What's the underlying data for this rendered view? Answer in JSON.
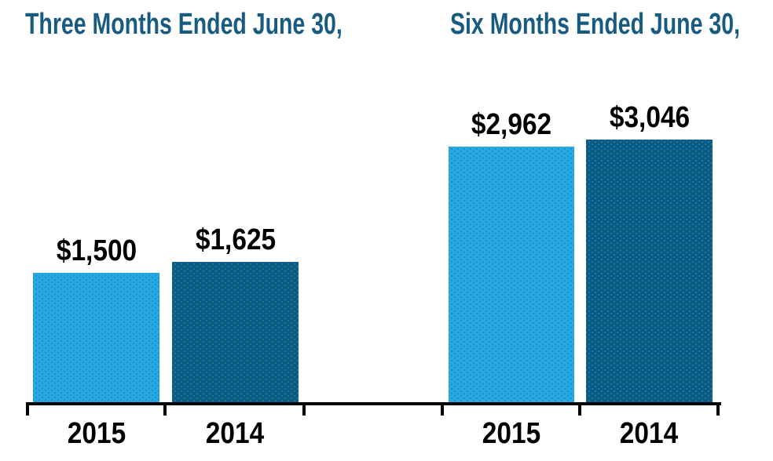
{
  "chart_data": {
    "type": "bar",
    "background": "#ffffff",
    "title_color": "#175c80",
    "value_label_color": "#000000",
    "category_label_color": "#000000",
    "axis_color": "#000000",
    "grid": false,
    "legend": "none",
    "ylim": [
      0,
      3300
    ],
    "groups": [
      {
        "title": "Three Months Ended June 30,",
        "categories": [
          "2015",
          "2014"
        ],
        "values": [
          1500,
          1625
        ],
        "value_labels": [
          "$1,500",
          "$1,625"
        ]
      },
      {
        "title": "Six Months Ended June 30,",
        "categories": [
          "2015",
          "2014"
        ],
        "values": [
          2962,
          3046
        ],
        "value_labels": [
          "$2,962",
          "$3,046"
        ]
      }
    ],
    "series": [
      {
        "name": "2015",
        "color": "#29a9e1",
        "dot_color": "#0d7fc4"
      },
      {
        "name": "2014",
        "color": "#0b5a8e",
        "dot_color": "#36995f"
      }
    ]
  }
}
